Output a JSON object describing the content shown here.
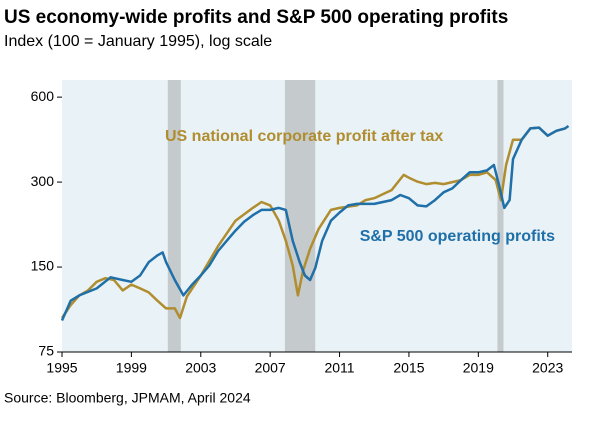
{
  "chart_data": {
    "type": "line",
    "title": "US economy-wide profits and S&P 500 operating profits",
    "subtitle": "Index (100 = January 1995), log scale",
    "source": "Source: Bloomberg, JPMAM, April 2024",
    "log_scale": true,
    "xlim": [
      1995,
      2024.4
    ],
    "xticks": [
      1995,
      1999,
      2003,
      2007,
      2011,
      2015,
      2019,
      2023
    ],
    "ylim": [
      75,
      690
    ],
    "yticks": [
      75,
      150,
      300,
      600
    ],
    "recessions": [
      [
        2001.1,
        2001.85
      ],
      [
        2007.85,
        2009.6
      ],
      [
        2020.1,
        2020.45
      ]
    ],
    "series": [
      {
        "name": "US national corporate profit after tax",
        "color": "#b08d2f",
        "x": [
          1995,
          1995.5,
          1996,
          1996.5,
          1997,
          1997.5,
          1998,
          1998.5,
          1999,
          1999.5,
          2000,
          2000.5,
          2001,
          2001.5,
          2001.8,
          2002.2,
          2003,
          2004,
          2005,
          2006,
          2006.5,
          2007,
          2007.5,
          2007.9,
          2008.3,
          2008.6,
          2008.9,
          2009.3,
          2009.8,
          2010.5,
          2011,
          2012,
          2012.5,
          2013,
          2014,
          2014.7,
          2015,
          2015.5,
          2016,
          2016.5,
          2017,
          2018,
          2018.5,
          2019,
          2019.5,
          2020,
          2020.3,
          2020.6,
          2021,
          2021.5,
          2022,
          2022.5,
          2023,
          2023.5,
          2024
        ],
        "values": [
          99,
          110,
          119,
          124,
          133,
          137,
          135,
          124,
          130,
          126,
          122,
          114,
          107,
          107,
          99,
          118,
          140,
          178,
          219,
          243,
          255,
          248,
          219,
          186,
          152,
          119,
          146,
          174,
          205,
          239,
          243,
          248,
          259,
          263,
          281,
          318,
          311,
          301,
          295,
          298,
          295,
          305,
          318,
          318,
          325,
          305,
          259,
          345,
          424,
          424,
          465,
          468,
          438,
          456,
          465
        ]
      },
      {
        "name": "S&P 500 operating profits",
        "color": "#1f6fa8",
        "x": [
          1995,
          1995.5,
          1996,
          1997,
          1997.8,
          1998.5,
          1999,
          1999.5,
          2000,
          2000.5,
          2000.8,
          2001,
          2001.5,
          2002,
          2002.5,
          2003,
          2003.5,
          2004,
          2004.5,
          2005,
          2005.5,
          2006,
          2006.5,
          2007,
          2007.5,
          2007.9,
          2008.3,
          2008.7,
          2009,
          2009.3,
          2009.6,
          2010,
          2010.5,
          2011,
          2011.5,
          2012,
          2013,
          2014,
          2014.5,
          2015,
          2015.5,
          2016,
          2016.5,
          2017,
          2017.5,
          2018,
          2018.5,
          2019,
          2019.5,
          2019.9,
          2020.2,
          2020.5,
          2020.8,
          2021,
          2021.5,
          2022,
          2022.5,
          2023,
          2023.5,
          2024,
          2024.2
        ],
        "values": [
          97,
          114,
          119,
          126,
          138,
          135,
          133,
          140,
          156,
          165,
          169,
          156,
          135,
          119,
          130,
          140,
          152,
          171,
          186,
          202,
          217,
          229,
          239,
          239,
          243,
          239,
          186,
          156,
          140,
          135,
          149,
          186,
          219,
          234,
          248,
          251,
          251,
          259,
          270,
          263,
          248,
          246,
          259,
          276,
          285,
          305,
          325,
          325,
          330,
          345,
          292,
          243,
          259,
          362,
          424,
          465,
          468,
          438,
          456,
          465,
          474
        ]
      }
    ]
  }
}
